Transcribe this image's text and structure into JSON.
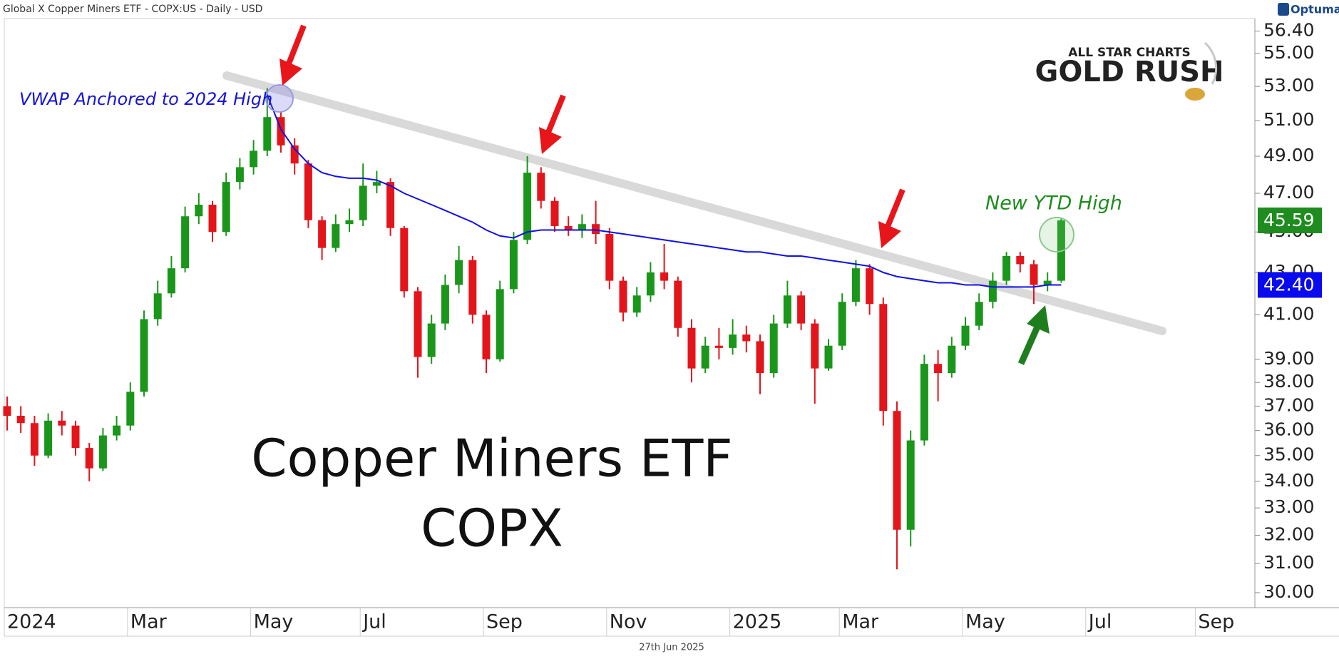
{
  "header": {
    "title": "Global X Copper Miners ETF - COPX:US - Daily - USD",
    "brand": "Optuma",
    "date": "27th Jun 2025"
  },
  "logo": {
    "line1": "ALL STAR CHARTS",
    "line2": "GOLD RUSH"
  },
  "chart_data": {
    "type": "candlestick",
    "title": "Copper Miners ETF",
    "subtitle": "COPX",
    "annotations": [
      "VWAP Anchored to 2024 High",
      "New YTD High"
    ],
    "categories": [
      "2024",
      null,
      null,
      null,
      null,
      null,
      null,
      null,
      null,
      "Mar",
      null,
      null,
      null,
      null,
      null,
      null,
      null,
      null,
      "May",
      null,
      null,
      null,
      null,
      null,
      null,
      null,
      "Jul",
      null,
      null,
      null,
      null,
      null,
      null,
      null,
      null,
      "Sep",
      null,
      null,
      null,
      null,
      null,
      null,
      null,
      null,
      "Nov",
      null,
      null,
      null,
      null,
      null,
      null,
      null,
      null,
      "2025",
      null,
      null,
      null,
      null,
      null,
      null,
      null,
      "Mar",
      null,
      null,
      null,
      null,
      null,
      null,
      null,
      null,
      "May",
      null,
      null,
      null,
      null,
      null,
      null,
      null,
      null,
      "Jul",
      null,
      null,
      null,
      null,
      null,
      null,
      null,
      "Sep",
      null,
      null,
      null
    ],
    "series": [
      {
        "type": "candlestick",
        "up_color": "#1a961a",
        "down_color": "#e3151b",
        "open": [
          37.0,
          36.6,
          36.3,
          35.0,
          36.4,
          36.2,
          35.3,
          34.5,
          35.8,
          36.2,
          37.6,
          40.8,
          42.0,
          43.2,
          45.8,
          46.4,
          45.0,
          47.6,
          48.4,
          49.3,
          51.2,
          49.6,
          48.6,
          45.6,
          44.2,
          45.4,
          45.6,
          47.4,
          47.6,
          45.2,
          42.1,
          39.1,
          40.6,
          42.4,
          43.6,
          41.0,
          39.0,
          42.2,
          44.6,
          48.1,
          46.6,
          45.3,
          45.1,
          45.4,
          44.9,
          42.6,
          41.1,
          41.9,
          43.0,
          42.6,
          40.4,
          38.6,
          39.6,
          39.5,
          40.1,
          39.8,
          38.4,
          40.6,
          41.9,
          40.6,
          38.6,
          39.6,
          41.6,
          43.2,
          41.5,
          36.8,
          32.2,
          35.6,
          38.8,
          38.4,
          39.6,
          40.5,
          41.6,
          42.6,
          43.8,
          43.4,
          42.4,
          42.6,
          null,
          null,
          null,
          null,
          null,
          null,
          null,
          null,
          null,
          null,
          null,
          null,
          null
        ],
        "high": [
          37.4,
          37.0,
          36.6,
          36.7,
          36.8,
          36.4,
          35.5,
          36.1,
          36.6,
          38.0,
          41.2,
          42.6,
          43.8,
          46.3,
          47.0,
          46.6,
          48.1,
          48.9,
          49.9,
          52.9,
          51.5,
          50.0,
          48.8,
          45.8,
          45.9,
          46.2,
          48.6,
          48.2,
          47.8,
          45.3,
          42.3,
          41.0,
          42.9,
          44.3,
          43.8,
          41.2,
          42.6,
          45.0,
          49.0,
          48.4,
          46.8,
          45.8,
          45.9,
          46.6,
          45.2,
          42.8,
          42.3,
          43.5,
          44.4,
          42.8,
          40.8,
          40.0,
          40.4,
          40.8,
          40.5,
          40.1,
          41.0,
          42.6,
          42.1,
          40.8,
          39.9,
          42.0,
          43.6,
          43.4,
          41.8,
          37.2,
          36.0,
          39.2,
          39.4,
          40.0,
          40.9,
          42.0,
          43.0,
          44.0,
          44.0,
          43.6,
          43.0,
          45.7,
          null,
          null,
          null,
          null,
          null,
          null,
          null,
          null,
          null,
          null,
          null,
          null,
          null
        ],
        "low": [
          36.0,
          35.9,
          34.6,
          34.9,
          35.8,
          35.0,
          34.0,
          34.4,
          35.6,
          36.0,
          37.4,
          40.5,
          41.8,
          43.0,
          45.4,
          44.5,
          44.8,
          47.2,
          48.0,
          49.0,
          49.2,
          48.0,
          45.2,
          43.6,
          44.0,
          45.0,
          45.3,
          47.0,
          44.8,
          41.8,
          38.2,
          38.8,
          40.3,
          42.0,
          40.6,
          38.4,
          38.9,
          42.0,
          44.4,
          46.2,
          45.0,
          44.8,
          44.7,
          44.4,
          42.2,
          40.7,
          40.9,
          41.6,
          42.2,
          40.0,
          38.0,
          38.4,
          39.0,
          39.2,
          39.3,
          37.5,
          38.2,
          40.4,
          40.3,
          37.1,
          38.5,
          39.4,
          41.4,
          41.0,
          36.2,
          30.8,
          31.6,
          35.4,
          37.2,
          38.2,
          39.4,
          40.3,
          41.3,
          42.4,
          43.0,
          41.5,
          42.1,
          42.5,
          null,
          null,
          null,
          null,
          null,
          null,
          null,
          null,
          null,
          null,
          null,
          null,
          null
        ],
        "close": [
          36.6,
          36.3,
          35.0,
          36.4,
          36.2,
          35.3,
          34.5,
          35.8,
          36.2,
          37.6,
          40.8,
          42.0,
          43.2,
          45.8,
          46.4,
          45.0,
          47.6,
          48.4,
          49.3,
          51.2,
          49.6,
          48.6,
          45.6,
          44.2,
          45.4,
          45.6,
          47.4,
          47.6,
          45.2,
          42.1,
          39.1,
          40.6,
          42.4,
          43.6,
          41.0,
          39.0,
          42.2,
          44.6,
          48.1,
          46.6,
          45.3,
          45.1,
          45.4,
          44.9,
          42.6,
          41.1,
          41.9,
          43.0,
          42.6,
          40.4,
          38.6,
          39.6,
          39.5,
          40.1,
          39.8,
          38.4,
          40.6,
          41.9,
          40.6,
          38.6,
          39.6,
          41.6,
          43.2,
          41.5,
          36.8,
          32.2,
          35.6,
          38.8,
          38.4,
          39.6,
          40.5,
          41.6,
          42.6,
          43.8,
          43.4,
          42.4,
          42.6,
          45.59,
          null,
          null,
          null,
          null,
          null,
          null,
          null,
          null,
          null,
          null,
          null,
          null,
          null
        ]
      },
      {
        "type": "line",
        "color": "#1010e6",
        "values": [
          null,
          null,
          null,
          null,
          null,
          null,
          null,
          null,
          null,
          null,
          null,
          null,
          null,
          null,
          null,
          null,
          null,
          null,
          null,
          52.5,
          50.5,
          49.4,
          48.6,
          48.1,
          47.9,
          47.8,
          47.8,
          47.7,
          47.4,
          47.0,
          46.7,
          46.4,
          46.1,
          45.8,
          45.5,
          45.1,
          44.8,
          44.7,
          45.0,
          45.1,
          45.1,
          45.1,
          45.1,
          45.1,
          45.0,
          44.9,
          44.8,
          44.7,
          44.6,
          44.5,
          44.4,
          44.3,
          44.2,
          44.1,
          44.0,
          44.0,
          43.9,
          43.8,
          43.8,
          43.7,
          43.6,
          43.5,
          43.4,
          43.3,
          43.0,
          42.8,
          42.7,
          42.6,
          42.5,
          42.5,
          42.4,
          42.4,
          42.3,
          42.3,
          42.3,
          42.3,
          42.4,
          42.4,
          null,
          null,
          null,
          null,
          null,
          null,
          null,
          null,
          null,
          null,
          null,
          null,
          null
        ]
      }
    ],
    "ylim": [
      29.5,
      57.2
    ],
    "log_scale": true,
    "yticks": [
      {
        "value": 30,
        "label": "30.00"
      },
      {
        "value": 31,
        "label": "31.00"
      },
      {
        "value": 32,
        "label": "32.00"
      },
      {
        "value": 33,
        "label": "33.00"
      },
      {
        "value": 34,
        "label": "34.00"
      },
      {
        "value": 35,
        "label": "35.00"
      },
      {
        "value": 36,
        "label": "36.00"
      },
      {
        "value": 37,
        "label": "37.00"
      },
      {
        "value": 38,
        "label": "38.00"
      },
      {
        "value": 39,
        "label": "39.00"
      },
      {
        "value": 41,
        "label": "41.00"
      },
      {
        "value": 43,
        "label": "43.00"
      },
      {
        "value": 45,
        "label": "45.00"
      },
      {
        "value": 47,
        "label": "47.00"
      },
      {
        "value": 49,
        "label": "49.00"
      },
      {
        "value": 51,
        "label": "51.00"
      },
      {
        "value": 53,
        "label": "53.00"
      },
      {
        "value": 55,
        "label": "55.00"
      },
      {
        "value": 56.4,
        "label": "56.40"
      }
    ],
    "price_labels": [
      {
        "value": 45.59,
        "label": "45.59",
        "color": "#1e8c1e"
      },
      {
        "value": 42.4,
        "label": "42.40",
        "color": "#0a0aee"
      }
    ]
  }
}
